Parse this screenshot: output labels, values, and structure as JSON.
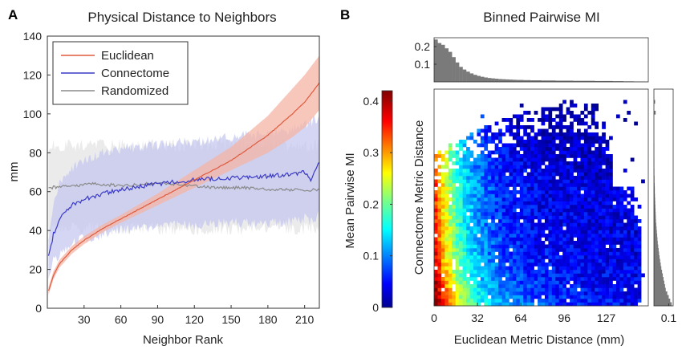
{
  "panels": {
    "a": {
      "letter": "A",
      "title": "Physical Distance to Neighbors"
    },
    "b": {
      "letter": "B",
      "title": "Binned Pairwise MI"
    }
  },
  "chart_data": [
    {
      "type": "line",
      "title": "Physical Distance to Neighbors",
      "xlabel": "Neighbor Rank",
      "ylabel": "mm",
      "xlim": [
        0,
        222
      ],
      "ylim": [
        0,
        140
      ],
      "xticks": [
        30,
        60,
        90,
        120,
        150,
        180,
        210
      ],
      "yticks": [
        0,
        20,
        40,
        60,
        80,
        100,
        120,
        140
      ],
      "legend": {
        "position": "top-left",
        "entries": [
          "Euclidean",
          "Connectome",
          "Randomized"
        ]
      },
      "series": [
        {
          "name": "Euclidean",
          "color": "#e05a3c",
          "band_color": "#f4b4a6",
          "x": [
            1,
            5,
            10,
            20,
            30,
            45,
            60,
            90,
            120,
            150,
            180,
            200,
            210,
            222
          ],
          "mean": [
            9,
            17,
            23,
            30,
            35,
            41,
            46,
            56,
            66,
            76,
            89,
            100,
            106,
            116
          ],
          "lower": [
            7,
            15,
            21,
            28,
            33,
            39,
            44,
            53,
            62,
            71,
            80,
            88,
            93,
            102
          ],
          "upper": [
            11,
            19,
            25,
            32,
            37,
            43,
            48,
            59,
            71,
            83,
            99,
            113,
            120,
            130
          ]
        },
        {
          "name": "Connectome",
          "color": "#3a3ac6",
          "band_color": "#c2c5f0",
          "x": [
            1,
            5,
            10,
            20,
            30,
            45,
            60,
            90,
            120,
            150,
            180,
            200,
            210,
            215,
            222
          ],
          "mean": [
            27,
            38,
            46,
            53,
            56,
            59,
            61,
            64,
            66,
            67,
            68,
            69,
            70,
            66,
            76
          ],
          "lower": [
            17,
            24,
            28,
            33,
            36,
            38,
            40,
            42,
            43,
            44,
            44,
            45,
            46,
            45,
            48
          ],
          "upper": [
            38,
            52,
            64,
            72,
            76,
            80,
            82,
            84,
            86,
            88,
            90,
            92,
            94,
            96,
            98
          ]
        },
        {
          "name": "Randomized",
          "color": "#8a8a8a",
          "band_color": "#e3e3e3",
          "x": [
            1,
            20,
            40,
            60,
            80,
            100,
            120,
            140,
            160,
            180,
            200,
            222
          ],
          "mean": [
            62,
            63,
            64,
            63,
            64,
            64,
            63,
            62,
            62,
            61,
            61,
            61
          ],
          "lower": [
            41,
            41,
            41,
            41,
            41,
            41,
            41,
            41,
            41,
            41,
            41,
            41
          ],
          "upper": [
            84,
            84,
            84,
            84,
            84,
            84,
            84,
            84,
            84,
            84,
            84,
            84
          ]
        }
      ]
    },
    {
      "type": "heatmap",
      "title": "Binned Pairwise MI",
      "xlabel": "Euclidean Metric Distance (mm)",
      "ylabel": "Connectome Metric Distance",
      "xticks": [
        0,
        32,
        64,
        96,
        127
      ],
      "xlim": [
        0,
        158
      ],
      "colorbar": {
        "label": "Mean Pairwise MI",
        "range": [
          0,
          0.42
        ],
        "ticks": [
          0,
          0.1,
          0.2,
          0.3,
          0.4
        ],
        "colormap": "jet"
      },
      "marginal_top": {
        "yticks": [
          0.1,
          0.2
        ],
        "ylim": [
          0,
          0.25
        ],
        "values": [
          0.24,
          0.22,
          0.21,
          0.19,
          0.17,
          0.14,
          0.11,
          0.085,
          0.07,
          0.058,
          0.048,
          0.04,
          0.034,
          0.029,
          0.025,
          0.022,
          0.02,
          0.018,
          0.016,
          0.015,
          0.014,
          0.013,
          0.012,
          0.011,
          0.011,
          0.01,
          0.01,
          0.009,
          0.009,
          0.009,
          0.008,
          0.008,
          0.008,
          0.008,
          0.007,
          0.007,
          0.007,
          0.007,
          0.007,
          0.006,
          0.006,
          0.006,
          0.006,
          0.006,
          0.006,
          0.005,
          0.005,
          0.005,
          0.005,
          0.005,
          0.004,
          0.004,
          0.004,
          0.003,
          0.003,
          0.003,
          0.002,
          0.002,
          0.002,
          0.001
        ]
      },
      "marginal_right": {
        "xticks": [
          0.1
        ],
        "xlim": [
          0,
          0.13
        ],
        "values": [
          0.12,
          0.11,
          0.1,
          0.09,
          0.08,
          0.075,
          0.07,
          0.065,
          0.06,
          0.055,
          0.05,
          0.046,
          0.042,
          0.038,
          0.035,
          0.032,
          0.029,
          0.026,
          0.024,
          0.022,
          0.02,
          0.018,
          0.016,
          0.014,
          0.013,
          0.012,
          0.011,
          0.01,
          0.009,
          0.008,
          0.007,
          0.006,
          0.006,
          0.005,
          0.004,
          0.004,
          0.003,
          0.003,
          0.002,
          0.002,
          0.002,
          0.001,
          0.001,
          0.001,
          0.001,
          0.0,
          0.0,
          0.0,
          0.0,
          0.0,
          0.0,
          0.0,
          0.0,
          0.012,
          0.0,
          0.0,
          0.008,
          0.0,
          0.0,
          0.0
        ]
      }
    }
  ]
}
